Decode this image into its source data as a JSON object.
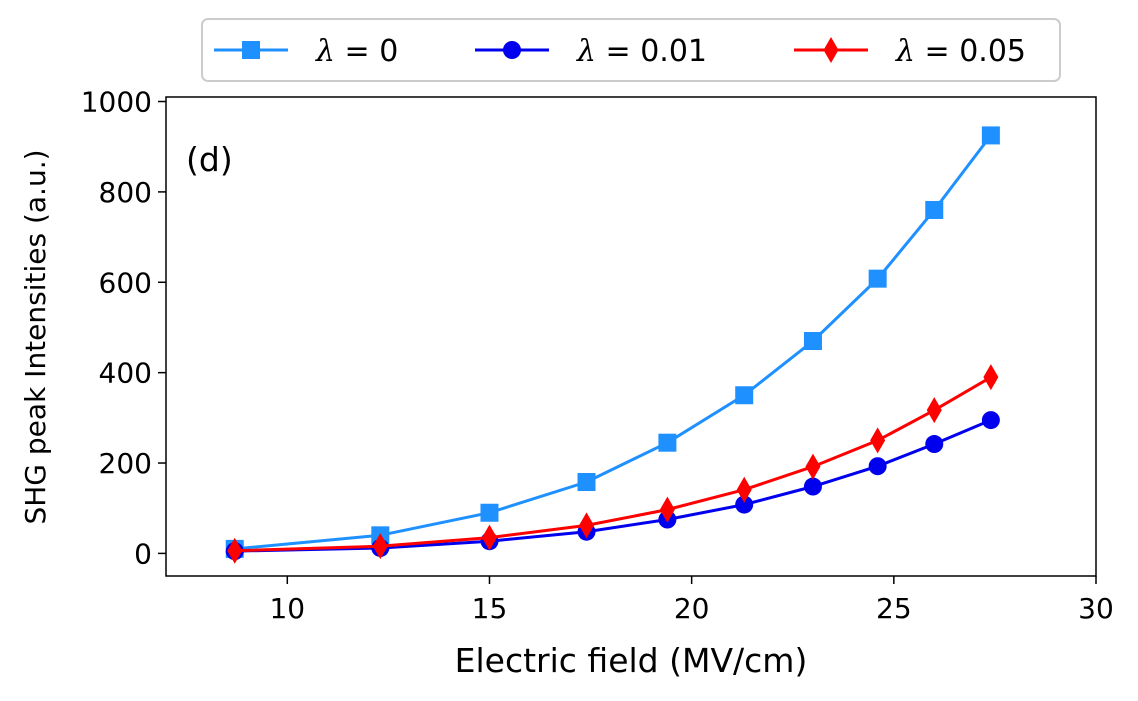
{
  "chart_data": {
    "type": "line",
    "panel_label": "(d)",
    "xlabel": "Electric field (MV/cm)",
    "ylabel": "SHG peak Intensities (a.u.)",
    "xlim": [
      7,
      30
    ],
    "ylim": [
      -50,
      1010
    ],
    "xticks": [
      10,
      15,
      20,
      25,
      30
    ],
    "yticks": [
      0,
      200,
      400,
      600,
      800,
      1000
    ],
    "x": [
      8.7,
      12.3,
      15.0,
      17.4,
      19.4,
      21.3,
      23.0,
      24.6,
      26.0,
      27.4
    ],
    "legend": {
      "placement": "top-outside",
      "columns": 3
    },
    "series": [
      {
        "name": "λ = 0",
        "lambda_symbol": "λ",
        "lambda_value": "= 0",
        "color": "#1e90ff",
        "marker": "square",
        "values": [
          10,
          40,
          90,
          158,
          245,
          350,
          470,
          608,
          760,
          925
        ]
      },
      {
        "name": "λ = 0.01",
        "lambda_symbol": "λ",
        "lambda_value": "= 0.01",
        "color": "#0000ee",
        "marker": "circle",
        "values": [
          5,
          12,
          27,
          48,
          75,
          108,
          148,
          193,
          242,
          295
        ]
      },
      {
        "name": "λ = 0.05",
        "lambda_symbol": "λ",
        "lambda_value": "= 0.05",
        "color": "#ff0000",
        "marker": "diamond",
        "values": [
          6,
          16,
          35,
          62,
          97,
          141,
          192,
          250,
          317,
          390
        ]
      }
    ]
  }
}
